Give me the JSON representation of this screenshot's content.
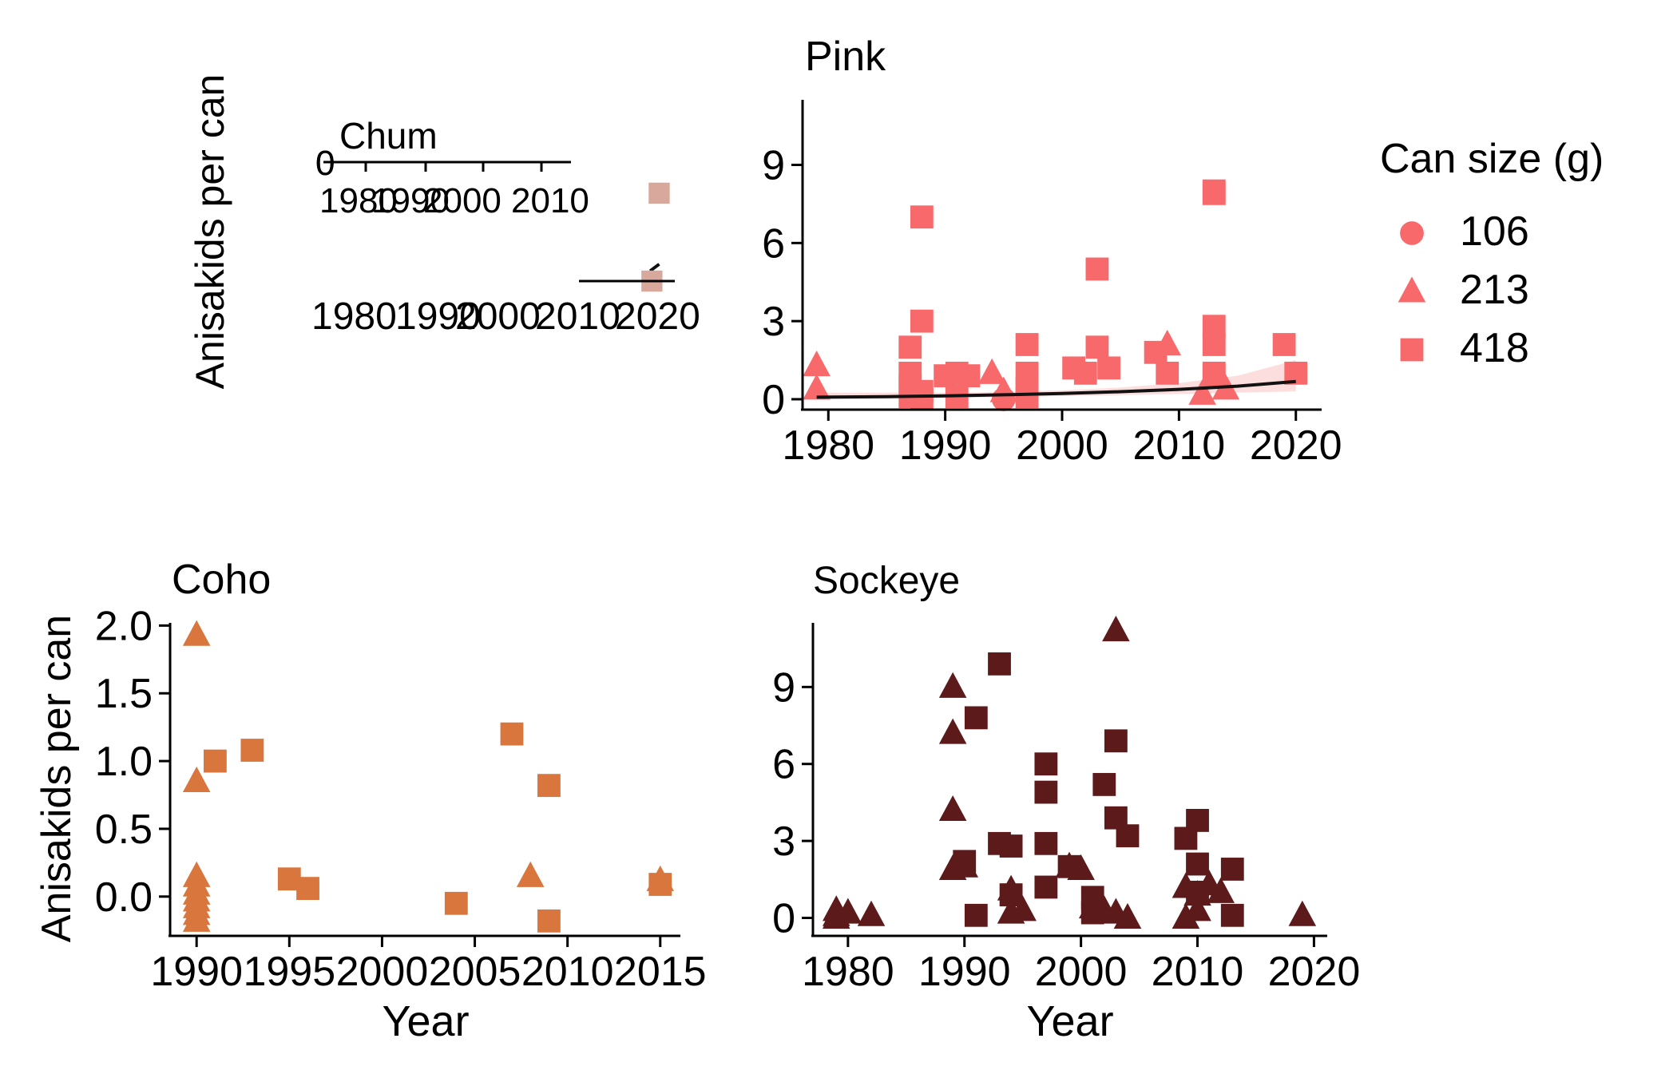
{
  "chart_data": [
    {
      "id": "chum",
      "type": "scatter",
      "title": "Chum",
      "ylabel": "Anisakids per can",
      "xlabel": "",
      "color": "#d9a89c",
      "xlim": [
        1978,
        2022
      ],
      "ylim": [
        0,
        0.3
      ],
      "xticks": [
        "1980",
        "1990",
        "2000",
        "2010",
        "2020"
      ],
      "series": [
        {
          "name": "418",
          "x": [
            2016,
            2020
          ],
          "y": [
            0.0,
            0.26
          ]
        }
      ],
      "trend": {
        "x": [
          2015,
          2020
        ],
        "y": [
          0.03,
          0.05
        ]
      }
    },
    {
      "id": "pink",
      "type": "scatter",
      "title": "Pink",
      "ylabel": "",
      "xlabel": "",
      "color": "#f8696b",
      "xlim": [
        1978,
        2022
      ],
      "ylim": [
        -0.4,
        11.5
      ],
      "xticks": [
        "1980",
        "1990",
        "2000",
        "2010",
        "2020"
      ],
      "yticks": [
        "0",
        "3",
        "6",
        "9"
      ],
      "series": [
        {
          "name": "106",
          "x": [
            1995
          ],
          "y": [
            0.0
          ]
        },
        {
          "name": "213",
          "x": [
            1979,
            1979,
            1994,
            1995,
            2009,
            2012,
            2014
          ],
          "y": [
            1.3,
            0.4,
            1.0,
            0.3,
            2.1,
            0.2,
            0.4
          ]
        },
        {
          "name": "418",
          "x": [
            1987,
            1987,
            1987,
            1987,
            1988,
            1988,
            1988,
            1988,
            1990,
            1991,
            1991,
            1992,
            1997,
            1997,
            1997,
            1997,
            2001,
            2002,
            2003,
            2003,
            2004,
            2008,
            2009,
            2013,
            2013,
            2013,
            2013,
            2013,
            2013,
            2019,
            2020
          ],
          "y": [
            2.0,
            1.0,
            0.5,
            0.1,
            7.0,
            3.0,
            0.3,
            0.0,
            0.9,
            1.0,
            0.1,
            0.9,
            2.1,
            1.0,
            0.4,
            0.1,
            1.2,
            1.0,
            5.0,
            2.0,
            1.2,
            1.8,
            1.0,
            8.0,
            7.9,
            2.8,
            2.1,
            1.0,
            0.9,
            2.1,
            1.0
          ]
        }
      ],
      "trend": {
        "x": [
          1979,
          1985,
          1990,
          1995,
          2000,
          2005,
          2010,
          2015,
          2020
        ],
        "y": [
          0.08,
          0.1,
          0.13,
          0.17,
          0.22,
          0.29,
          0.38,
          0.5,
          0.68
        ]
      },
      "band": {
        "lower": [
          0.0,
          0.02,
          0.05,
          0.08,
          0.12,
          0.16,
          0.2,
          0.25,
          0.3
        ],
        "upper": [
          0.25,
          0.25,
          0.25,
          0.28,
          0.34,
          0.45,
          0.62,
          0.9,
          1.5
        ]
      }
    },
    {
      "id": "coho",
      "type": "scatter",
      "title": "Coho",
      "ylabel": "Anisakids per can",
      "xlabel": "Year",
      "color": "#d9763d",
      "xlim": [
        1988.7,
        2016
      ],
      "ylim": [
        -0.29,
        2.02
      ],
      "xticks": [
        "1990",
        "1995",
        "2000",
        "2005",
        "2010",
        "2015"
      ],
      "yticks": [
        "0.0",
        "0.5",
        "1.0",
        "1.5",
        "2.0"
      ],
      "series": [
        {
          "name": "213",
          "x": [
            1990,
            1990,
            1990,
            1990,
            1990,
            1990,
            1990,
            1990,
            1990,
            2008,
            2015
          ],
          "y": [
            1.93,
            0.85,
            0.15,
            0.08,
            0.02,
            -0.03,
            -0.08,
            -0.13,
            -0.18,
            0.15,
            0.12
          ]
        },
        {
          "name": "418",
          "x": [
            1991,
            1993,
            1995,
            1996,
            2004,
            2007,
            2009,
            2009,
            2015
          ],
          "y": [
            1.0,
            1.08,
            0.13,
            0.06,
            -0.05,
            1.2,
            0.82,
            -0.18,
            0.09
          ]
        }
      ]
    },
    {
      "id": "sockeye",
      "type": "scatter",
      "title": "Sockeye",
      "ylabel": "",
      "xlabel": "Year",
      "color": "#5c1a1b",
      "xlim": [
        1977.2,
        2021
      ],
      "ylim": [
        -0.7,
        11.5
      ],
      "xticks": [
        "1980",
        "1990",
        "2000",
        "2010",
        "2020"
      ],
      "yticks": [
        "0",
        "3",
        "6",
        "9"
      ],
      "series": [
        {
          "name": "213",
          "x": [
            1979,
            1979,
            1979,
            1980,
            1982,
            1989,
            1989,
            1989,
            1989,
            1990,
            1994,
            1994,
            1995,
            1999,
            2000,
            2001,
            2002,
            2003,
            2003,
            2004,
            2009,
            2009,
            2010,
            2010,
            2011,
            2012,
            2019
          ],
          "y": [
            0.3,
            0.1,
            0.0,
            0.2,
            0.1,
            9.0,
            7.2,
            4.2,
            1.9,
            2.0,
            1.1,
            0.2,
            0.3,
            2.0,
            1.9,
            0.4,
            0.3,
            11.2,
            0.2,
            0.0,
            1.2,
            0.0,
            0.9,
            0.3,
            1.3,
            1.0,
            0.1
          ]
        },
        {
          "name": "418",
          "x": [
            1990,
            1991,
            1991,
            1993,
            1993,
            1994,
            1994,
            1997,
            1997,
            1997,
            1997,
            1999,
            2001,
            2001,
            2002,
            2003,
            2003,
            2004,
            2009,
            2010,
            2010,
            2010,
            2013,
            2013
          ],
          "y": [
            2.2,
            7.8,
            0.1,
            9.9,
            2.9,
            0.9,
            2.8,
            6.0,
            4.9,
            2.9,
            1.2,
            2.0,
            0.8,
            0.2,
            5.2,
            6.9,
            3.9,
            3.2,
            3.1,
            3.8,
            2.1,
            1.0,
            1.9,
            0.1
          ]
        }
      ]
    }
  ],
  "legend": {
    "title": "Can size (g)",
    "items": [
      {
        "label": "106",
        "shape": "circle"
      },
      {
        "label": "213",
        "shape": "triangle"
      },
      {
        "label": "418",
        "shape": "square"
      }
    ],
    "color": "#f8696b",
    "placement": "right"
  }
}
